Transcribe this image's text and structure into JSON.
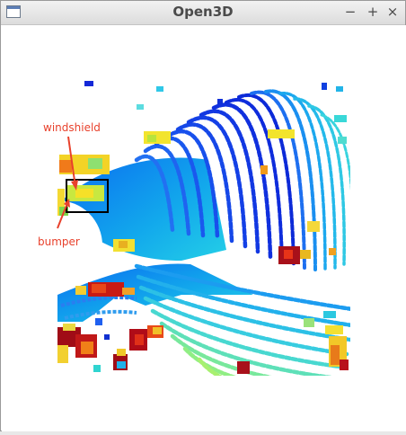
{
  "window": {
    "title": "Open3D",
    "controls": {
      "minimize": "−",
      "maximize": "+",
      "close": "×"
    }
  },
  "viewer": {
    "annotations": {
      "top": "windshield",
      "bottom": "bumper"
    },
    "colors": {
      "annotation": "#e8412c",
      "box": "#000000",
      "background": "#ffffff"
    }
  }
}
